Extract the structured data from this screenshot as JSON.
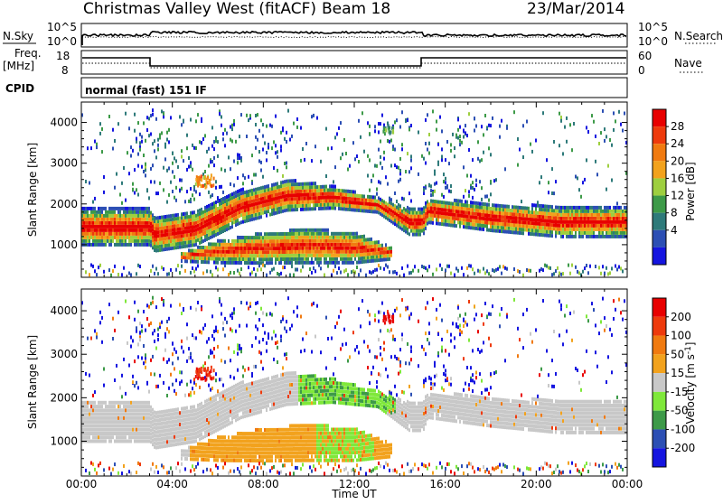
{
  "header": {
    "title": "Christmas Valley West (fitACF)",
    "beam": "Beam 18",
    "date": "23/Mar/2014"
  },
  "summary": {
    "nsky_label": "N.Sky",
    "nsky_ticks": [
      "10^5",
      "10^0"
    ],
    "nsearch_label": "N.Search",
    "nsearch_ticks": [
      "10^5",
      "10^0"
    ],
    "freq_label": "Freq.",
    "freq_unit": "[MHz]",
    "freq_ticks": [
      "18",
      "8"
    ],
    "nave_label": "Nave",
    "nave_ticks": [
      "60",
      "0"
    ],
    "cpid_label": "CPID",
    "cpid_text": "normal (fast) 151 IF"
  },
  "chart_data": [
    {
      "type": "heatmap",
      "panel": "power",
      "xlabel": "",
      "ylabel": "Slant Range [km]",
      "ylim": [
        200,
        4500
      ],
      "yticks": [
        "1000",
        "2000",
        "3000",
        "4000"
      ],
      "xlim": [
        "00:00",
        "24:00"
      ],
      "colorbar_label": "Power [dB]",
      "colorbar_ticks": [
        "4",
        "8",
        "12",
        "16",
        "20",
        "24",
        "28"
      ],
      "colorbar_colors": [
        "#1515e0",
        "#2c4fb4",
        "#2e7a7a",
        "#3d9a48",
        "#9ecf3f",
        "#f2a21d",
        "#f07a10",
        "#ee3a0c",
        "#e80000"
      ],
      "bands": [
        {
          "name": "main",
          "t": [
            0,
            3,
            3.2,
            5,
            7,
            9,
            11,
            13,
            14.4,
            15,
            15.2,
            18,
            21,
            24
          ],
          "lo": [
            1000,
            1000,
            850,
            1000,
            1550,
            1850,
            1900,
            1800,
            1250,
            1250,
            1550,
            1350,
            1200,
            1200
          ],
          "hi": [
            1900,
            1900,
            1700,
            1850,
            2350,
            2600,
            2450,
            2150,
            1900,
            1900,
            2150,
            2000,
            1950,
            1950
          ]
        },
        {
          "name": "lower",
          "t": [
            4.3,
            6,
            8,
            10,
            12,
            13.6
          ],
          "lo": [
            600,
            560,
            550,
            560,
            560,
            650
          ],
          "hi": [
            800,
            1100,
            1300,
            1400,
            1300,
            950
          ]
        }
      ]
    },
    {
      "type": "heatmap",
      "panel": "velocity",
      "xlabel": "Time UT",
      "ylabel": "Slant Range [km]",
      "ylim": [
        200,
        4500
      ],
      "yticks": [
        "1000",
        "2000",
        "3000",
        "4000"
      ],
      "xticks": [
        "00:00",
        "04:00",
        "08:00",
        "12:00",
        "16:00",
        "20:00",
        "00:00"
      ],
      "colorbar_label": "Velocity [m s",
      "colorbar_unit_sup": "-1",
      "colorbar_ticks": [
        "200",
        "100",
        "50",
        "15",
        "-15",
        "-50",
        "-100",
        "-200"
      ],
      "colorbar_colors": [
        "#1515e0",
        "#2c4fb4",
        "#3d9a48",
        "#7fe83a",
        "#c8c8c8",
        "#f2a21d",
        "#f07a10",
        "#ee3a0c",
        "#e80000"
      ]
    }
  ]
}
